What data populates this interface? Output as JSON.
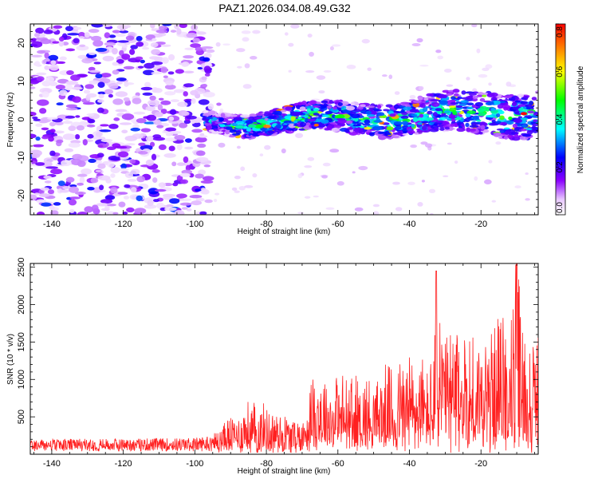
{
  "figure_title": "PAZ1.2026.034.08.49.G32",
  "chart_data": [
    {
      "type": "heatmap",
      "title": "PAZ1.2026.034.08.49.G32",
      "xlabel": "Height of straight line (km)",
      "ylabel": "Frequency (Hz)",
      "xlim": [
        -146,
        -4
      ],
      "ylim": [
        -25,
        25
      ],
      "xticks": [
        -140,
        -120,
        -100,
        -80,
        -60,
        -40,
        -20
      ],
      "yticks": [
        -20,
        -10,
        0,
        10,
        20
      ],
      "colorbar": {
        "label": "Normalized spectral amplitude",
        "range": [
          0.0,
          0.8
        ],
        "ticks": [
          "0.0",
          "0.2",
          "0.4",
          "0.6",
          "0.8"
        ],
        "colormap": [
          "#ffffff",
          "#8a00ff",
          "#0000ff",
          "#00ffff",
          "#00ff00",
          "#ffff00",
          "#ff0000"
        ]
      },
      "description_regions": [
        {
          "x_range": [
            -146,
            -97
          ],
          "freq_range": [
            -25,
            25
          ],
          "level": "noise 0.0-0.15"
        },
        {
          "x_range": [
            -97,
            -4
          ],
          "freq_center_start": -1,
          "freq_center_end": 2,
          "level": "signal 0.2-0.8"
        }
      ],
      "peak": {
        "x": -8,
        "freq": 1.5,
        "value": 0.8
      }
    },
    {
      "type": "line",
      "xlabel": "Height of straight line (km)",
      "ylabel": "SNR (10 * v/v)",
      "xlim": [
        -146,
        -4
      ],
      "ylim": [
        0,
        2550
      ],
      "xticks": [
        -140,
        -120,
        -100,
        -80,
        -60,
        -40,
        -20
      ],
      "yticks": [
        500,
        1000,
        1500,
        2000,
        2500
      ],
      "series": [
        {
          "name": "SNR",
          "color": "#ff2020",
          "envelope_x": [
            -146,
            -120,
            -100,
            -95,
            -92,
            -88,
            -85,
            -80,
            -75,
            -70,
            -67,
            -65,
            -62,
            -60,
            -55,
            -50,
            -45,
            -40,
            -35,
            -33,
            -32,
            -30,
            -28,
            -25,
            -20,
            -18,
            -15,
            -12,
            -10,
            -9,
            -8,
            -6,
            -5,
            -4
          ],
          "envelope_y": [
            200,
            210,
            220,
            260,
            420,
            560,
            700,
            640,
            560,
            420,
            1100,
            1150,
            950,
            1050,
            1000,
            1050,
            1150,
            1400,
            1200,
            1500,
            2450,
            1500,
            1700,
            1650,
            1600,
            1550,
            1900,
            1850,
            2550,
            2300,
            1600,
            1500,
            1650,
            1600
          ]
        }
      ]
    }
  ]
}
